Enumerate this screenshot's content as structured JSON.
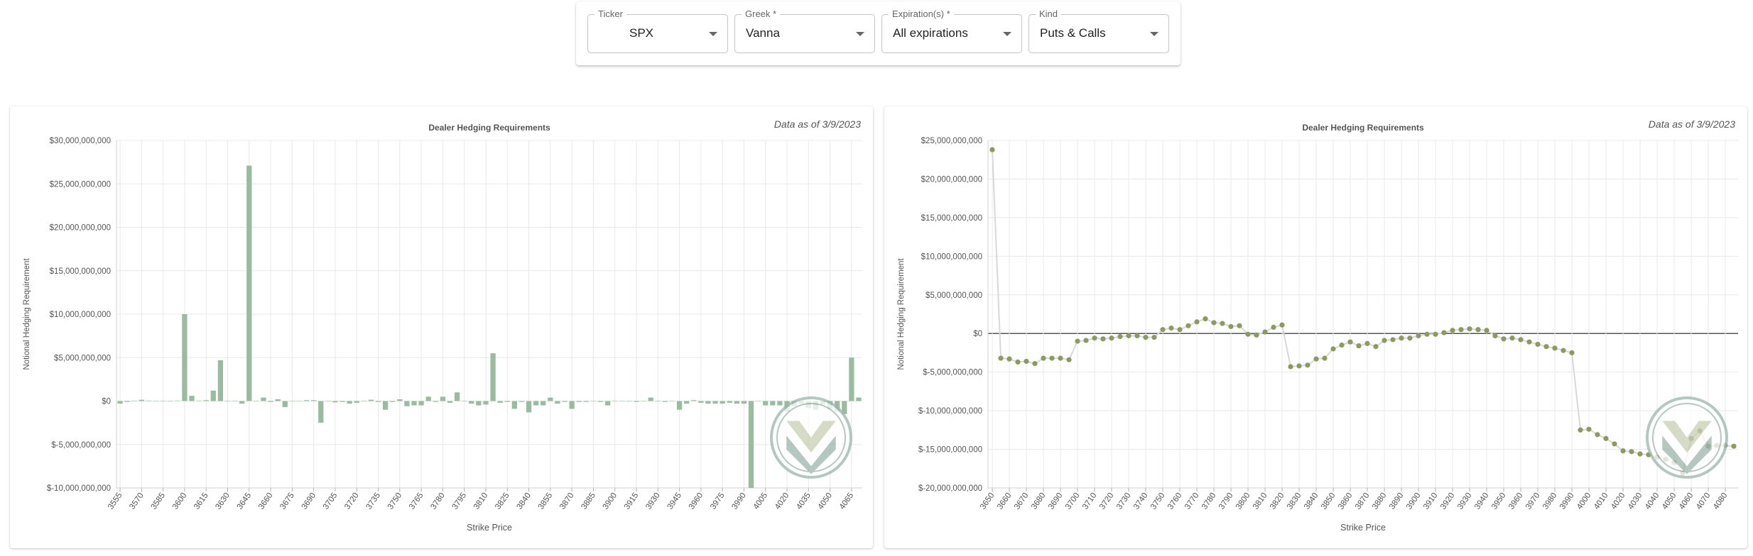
{
  "controls": {
    "ticker": {
      "label": "Ticker",
      "value": "SPX"
    },
    "greek": {
      "label": "Greek *",
      "value": "Vanna"
    },
    "expirations": {
      "label": "Expiration(s) *",
      "value": "All expirations"
    },
    "kind": {
      "label": "Kind",
      "value": "Puts & Calls"
    }
  },
  "colors": {
    "bar": "#9bbba1",
    "point": "#8b9a62",
    "line": "#d8d8d8",
    "grid": "#e8e8e8",
    "zero_line": "#555555",
    "logo": "#9bb5ad"
  },
  "chart_data": [
    {
      "type": "bar",
      "title": "Dealer Hedging Requirements",
      "as_of": "Data as of 3/9/2023",
      "xlabel": "Strike Price",
      "ylabel": "Notional Hedging Requirement",
      "ylim": [
        -10000000000,
        30000000000
      ],
      "y_ticks": [
        30000000000,
        25000000000,
        20000000000,
        15000000000,
        10000000000,
        5000000000,
        0,
        -5000000000,
        -10000000000
      ],
      "y_tick_labels": [
        "$30,000,000,000",
        "$25,000,000,000",
        "$20,000,000,000",
        "$15,000,000,000",
        "$10,000,000,000",
        "$5,000,000,000",
        "$0",
        "$-5,000,000,000",
        "$-10,000,000,000"
      ],
      "x_tick_labels": [
        "3555",
        "3570",
        "3585",
        "3600",
        "3615",
        "3630",
        "3645",
        "3660",
        "3675",
        "3690",
        "3705",
        "3720",
        "3735",
        "3750",
        "3765",
        "3780",
        "3795",
        "3810",
        "3825",
        "3840",
        "3855",
        "3870",
        "3885",
        "3900",
        "3915",
        "3930",
        "3945",
        "3960",
        "3975",
        "3990",
        "4005",
        "4020",
        "4035",
        "4050",
        "4065"
      ],
      "grid": true,
      "x": [
        3555,
        3560,
        3565,
        3570,
        3575,
        3580,
        3585,
        3590,
        3595,
        3600,
        3605,
        3610,
        3615,
        3620,
        3625,
        3630,
        3635,
        3640,
        3645,
        3650,
        3655,
        3660,
        3665,
        3670,
        3675,
        3680,
        3685,
        3690,
        3695,
        3700,
        3705,
        3710,
        3715,
        3720,
        3725,
        3730,
        3735,
        3740,
        3745,
        3750,
        3755,
        3760,
        3765,
        3770,
        3775,
        3780,
        3785,
        3790,
        3795,
        3800,
        3805,
        3810,
        3815,
        3820,
        3825,
        3830,
        3835,
        3840,
        3845,
        3850,
        3855,
        3860,
        3865,
        3870,
        3875,
        3880,
        3885,
        3890,
        3895,
        3900,
        3905,
        3910,
        3915,
        3920,
        3925,
        3930,
        3935,
        3940,
        3945,
        3950,
        3955,
        3960,
        3965,
        3970,
        3975,
        3980,
        3985,
        3990,
        3995,
        4000,
        4005,
        4010,
        4015,
        4020,
        4025,
        4030,
        4035,
        4040,
        4045,
        4050,
        4055,
        4060,
        4065,
        4070
      ],
      "values": [
        -300000000,
        -100000000,
        50000000,
        150000000,
        50000000,
        0,
        0,
        0,
        50000000,
        10000000000,
        600000000,
        50000000,
        100000000,
        1200000000,
        4700000000,
        0,
        50000000,
        -300000000,
        27100000000,
        0,
        400000000,
        -100000000,
        200000000,
        -700000000,
        -50000000,
        0,
        100000000,
        100000000,
        -2500000000,
        0,
        -150000000,
        -100000000,
        -300000000,
        -200000000,
        -50000000,
        150000000,
        -100000000,
        -1000000000,
        -100000000,
        200000000,
        -600000000,
        -500000000,
        -500000000,
        500000000,
        -100000000,
        500000000,
        -200000000,
        1000000000,
        0,
        -300000000,
        -500000000,
        -400000000,
        5500000000,
        -200000000,
        -100000000,
        -900000000,
        -100000000,
        -1300000000,
        -500000000,
        -500000000,
        400000000,
        -300000000,
        -100000000,
        -900000000,
        -100000000,
        -100000000,
        -50000000,
        -100000000,
        -500000000,
        0,
        -50000000,
        -50000000,
        -100000000,
        -50000000,
        400000000,
        -50000000,
        -100000000,
        -50000000,
        -1000000000,
        -300000000,
        100000000,
        -200000000,
        -300000000,
        -300000000,
        -300000000,
        -200000000,
        -300000000,
        -300000000,
        -10000000000,
        -50000000,
        -500000000,
        -500000000,
        -500000000,
        -1200000000,
        -600000000,
        -300000000,
        -800000000,
        -1000000000,
        -400000000,
        -900000000,
        -1200000000,
        -1500000000,
        5000000000,
        400000000
      ]
    },
    {
      "type": "line",
      "title": "Dealer Hedging Requirements",
      "as_of": "Data as of 3/9/2023",
      "xlabel": "Strike Price",
      "ylabel": "Notional Hedging Requirement",
      "ylim": [
        -20000000000,
        25000000000
      ],
      "y_ticks": [
        25000000000,
        20000000000,
        15000000000,
        10000000000,
        5000000000,
        0,
        -5000000000,
        -10000000000,
        -15000000000,
        -20000000000
      ],
      "y_tick_labels": [
        "$25,000,000,000",
        "$20,000,000,000",
        "$15,000,000,000",
        "$10,000,000,000",
        "$5,000,000,000",
        "$0",
        "$-5,000,000,000",
        "$-10,000,000,000",
        "$-15,000,000,000",
        "$-20,000,000,000"
      ],
      "x_tick_labels": [
        "3650",
        "3660",
        "3670",
        "3680",
        "3690",
        "3700",
        "3710",
        "3720",
        "3730",
        "3740",
        "3750",
        "3760",
        "3770",
        "3780",
        "3790",
        "3800",
        "3810",
        "3820",
        "3830",
        "3840",
        "3850",
        "3860",
        "3870",
        "3880",
        "3890",
        "3900",
        "3910",
        "3920",
        "3930",
        "3940",
        "3950",
        "3960",
        "3970",
        "3980",
        "3990",
        "4000",
        "4010",
        "4020",
        "4030",
        "4040",
        "4050",
        "4060",
        "4070",
        "4080"
      ],
      "grid": true,
      "x": [
        3650,
        3655,
        3660,
        3665,
        3670,
        3675,
        3680,
        3685,
        3690,
        3695,
        3700,
        3705,
        3710,
        3715,
        3720,
        3725,
        3730,
        3735,
        3740,
        3745,
        3750,
        3755,
        3760,
        3765,
        3770,
        3775,
        3780,
        3785,
        3790,
        3795,
        3800,
        3805,
        3810,
        3815,
        3820,
        3825,
        3830,
        3835,
        3840,
        3845,
        3850,
        3855,
        3860,
        3865,
        3870,
        3875,
        3880,
        3885,
        3890,
        3895,
        3900,
        3905,
        3910,
        3915,
        3920,
        3925,
        3930,
        3935,
        3940,
        3945,
        3950,
        3955,
        3960,
        3965,
        3970,
        3975,
        3980,
        3985,
        3990,
        3995,
        4000,
        4005,
        4010,
        4015,
        4020,
        4025,
        4030,
        4035,
        4040,
        4045,
        4050,
        4055,
        4060,
        4065,
        4070,
        4075,
        4080,
        4085
      ],
      "values": [
        23800000000,
        -3200000000,
        -3300000000,
        -3700000000,
        -3600000000,
        -3900000000,
        -3200000000,
        -3200000000,
        -3200000000,
        -3400000000,
        -1000000000,
        -900000000,
        -600000000,
        -700000000,
        -600000000,
        -400000000,
        -300000000,
        -300000000,
        -500000000,
        -500000000,
        500000000,
        700000000,
        500000000,
        1000000000,
        1500000000,
        1900000000,
        1400000000,
        1300000000,
        900000000,
        1000000000,
        -100000000,
        -200000000,
        200000000,
        800000000,
        1100000000,
        -4300000000,
        -4200000000,
        -4100000000,
        -3300000000,
        -3200000000,
        -2000000000,
        -1500000000,
        -1100000000,
        -1600000000,
        -1300000000,
        -1700000000,
        -900000000,
        -800000000,
        -600000000,
        -600000000,
        -300000000,
        -100000000,
        -100000000,
        100000000,
        400000000,
        500000000,
        600000000,
        500000000,
        400000000,
        -300000000,
        -700000000,
        -600000000,
        -800000000,
        -1100000000,
        -1400000000,
        -1700000000,
        -1900000000,
        -2200000000,
        -2500000000,
        -12500000000,
        -12400000000,
        -13100000000,
        -13600000000,
        -14300000000,
        -15200000000,
        -15300000000,
        -15600000000,
        -15700000000,
        -16000000000,
        -16300000000,
        -16700000000,
        -18100000000,
        -13600000000,
        -12600000000,
        -14600000000,
        -14500000000,
        -14500000000,
        -14600000000
      ]
    }
  ]
}
